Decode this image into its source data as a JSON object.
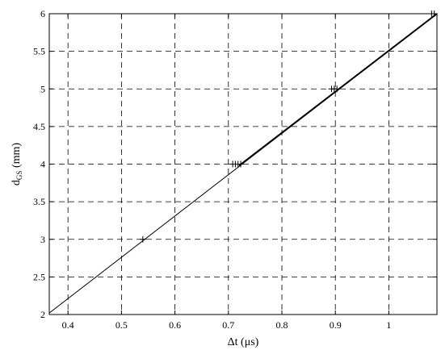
{
  "chart_data": {
    "type": "line",
    "xlabel_main": "Δt (μs)",
    "ylabel_main": "d",
    "ylabel_sub": "GS",
    "ylabel_unit": " (mm)",
    "xlim": [
      0.365,
      1.09
    ],
    "ylim": [
      2,
      6
    ],
    "grid": true,
    "x_ticks": [
      0.4,
      0.5,
      0.6,
      0.7,
      0.8,
      0.9,
      1.0
    ],
    "x_tick_labels": [
      "0.4",
      "0.5",
      "0.6",
      "0.7",
      "0.8",
      "0.9",
      "1"
    ],
    "y_ticks": [
      2,
      2.5,
      3,
      3.5,
      4,
      4.5,
      5,
      5.5,
      6
    ],
    "y_tick_labels": [
      "2",
      "2.5",
      "3",
      "3.5",
      "4",
      "4.5",
      "5",
      "5.5",
      "6"
    ],
    "series": [
      {
        "style": "fit-line",
        "x": [
          0.365,
          1.09
        ],
        "y": [
          2.02,
          6.0
        ]
      },
      {
        "style": "markers",
        "marker": "+",
        "x": [
          0.54,
          0.708,
          0.713,
          0.718,
          0.723,
          0.893,
          0.898,
          0.903,
          1.08,
          1.085
        ],
        "y": [
          3.0,
          4.0,
          4.0,
          4.0,
          4.0,
          5.0,
          5.0,
          5.0,
          6.0,
          6.0
        ]
      }
    ],
    "bold_segment": {
      "x": [
        0.72,
        1.09
      ],
      "y": [
        3.98,
        6.0
      ]
    }
  }
}
